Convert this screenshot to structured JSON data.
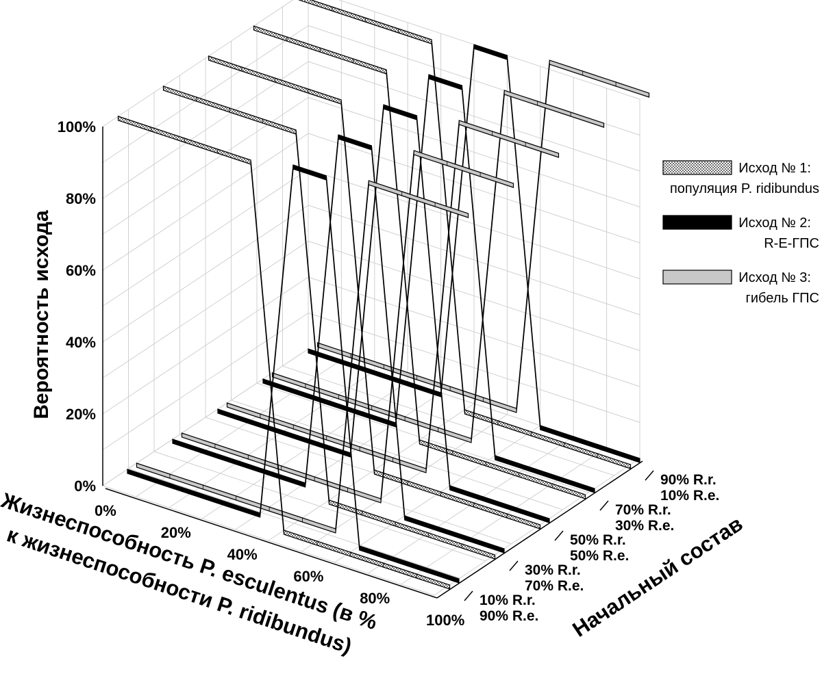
{
  "chart_data": {
    "type": "line",
    "projection": "3d",
    "title": "",
    "ylabel": "Вероятность исхода",
    "xlabel_line1": "Жизнеспособность P. esculentus (в %",
    "xlabel_line2": "к жизнеспособности P. ridibundus)",
    "zlabel": "Начальный состав",
    "ylim": [
      0,
      100
    ],
    "x_ticks": [
      "0%",
      "20%",
      "40%",
      "60%",
      "80%",
      "100%"
    ],
    "y_ticks": [
      "0%",
      "20%",
      "40%",
      "60%",
      "80%",
      "100%"
    ],
    "x": [
      0,
      10,
      20,
      30,
      40,
      50,
      60,
      70,
      80,
      90,
      100
    ],
    "groups": [
      {
        "label_line1": "10% R.r.",
        "label_line2": "90% R.e."
      },
      {
        "label_line1": "30% R.r.",
        "label_line2": "70% R.e."
      },
      {
        "label_line1": "50% R.r.",
        "label_line2": "50% R.e."
      },
      {
        "label_line1": "70% R.r.",
        "label_line2": "30% R.e."
      },
      {
        "label_line1": "90% R.r.",
        "label_line2": "10% R.e."
      }
    ],
    "series": [
      {
        "name_line1": "Исход № 1:",
        "name_line2": "популяция P. ridibundus",
        "fill": "hatched",
        "values": [
          [
            100,
            100,
            100,
            100,
            100,
            0,
            0,
            0,
            0,
            0,
            0
          ],
          [
            100,
            100,
            100,
            100,
            100,
            0,
            0,
            0,
            0,
            0,
            0
          ],
          [
            100,
            100,
            100,
            100,
            100,
            0,
            0,
            0,
            0,
            0,
            0
          ],
          [
            100,
            100,
            100,
            100,
            100,
            0,
            0,
            0,
            0,
            0,
            0
          ],
          [
            100,
            100,
            100,
            100,
            100,
            0,
            0,
            0,
            0,
            0,
            0
          ]
        ]
      },
      {
        "name_line1": "Исход № 2:",
        "name_line2": "R-E-ГПС",
        "fill": "#000000",
        "values": [
          [
            0,
            0,
            0,
            0,
            0,
            100,
            100,
            0,
            0,
            0,
            0
          ],
          [
            0,
            0,
            0,
            0,
            0,
            100,
            100,
            0,
            0,
            0,
            0
          ],
          [
            0,
            0,
            0,
            0,
            0,
            100,
            100,
            0,
            0,
            0,
            0
          ],
          [
            0,
            0,
            0,
            0,
            0,
            100,
            100,
            0,
            0,
            0,
            0
          ],
          [
            0,
            0,
            0,
            0,
            0,
            100,
            100,
            0,
            0,
            0,
            0
          ]
        ]
      },
      {
        "name_line1": "Исход № 3:",
        "name_line2": "гибель ГПС",
        "fill": "#c8c8c8",
        "values": [
          [
            0,
            0,
            0,
            0,
            0,
            0,
            0,
            100,
            100,
            100,
            100
          ],
          [
            0,
            0,
            0,
            0,
            0,
            0,
            0,
            100,
            100,
            100,
            100
          ],
          [
            0,
            0,
            0,
            0,
            0,
            0,
            0,
            100,
            100,
            100,
            100
          ],
          [
            0,
            0,
            0,
            0,
            0,
            0,
            0,
            100,
            100,
            100,
            100
          ],
          [
            0,
            0,
            0,
            0,
            0,
            0,
            0,
            100,
            100,
            100,
            100
          ]
        ]
      }
    ],
    "grid": true,
    "legend_position": "right"
  }
}
